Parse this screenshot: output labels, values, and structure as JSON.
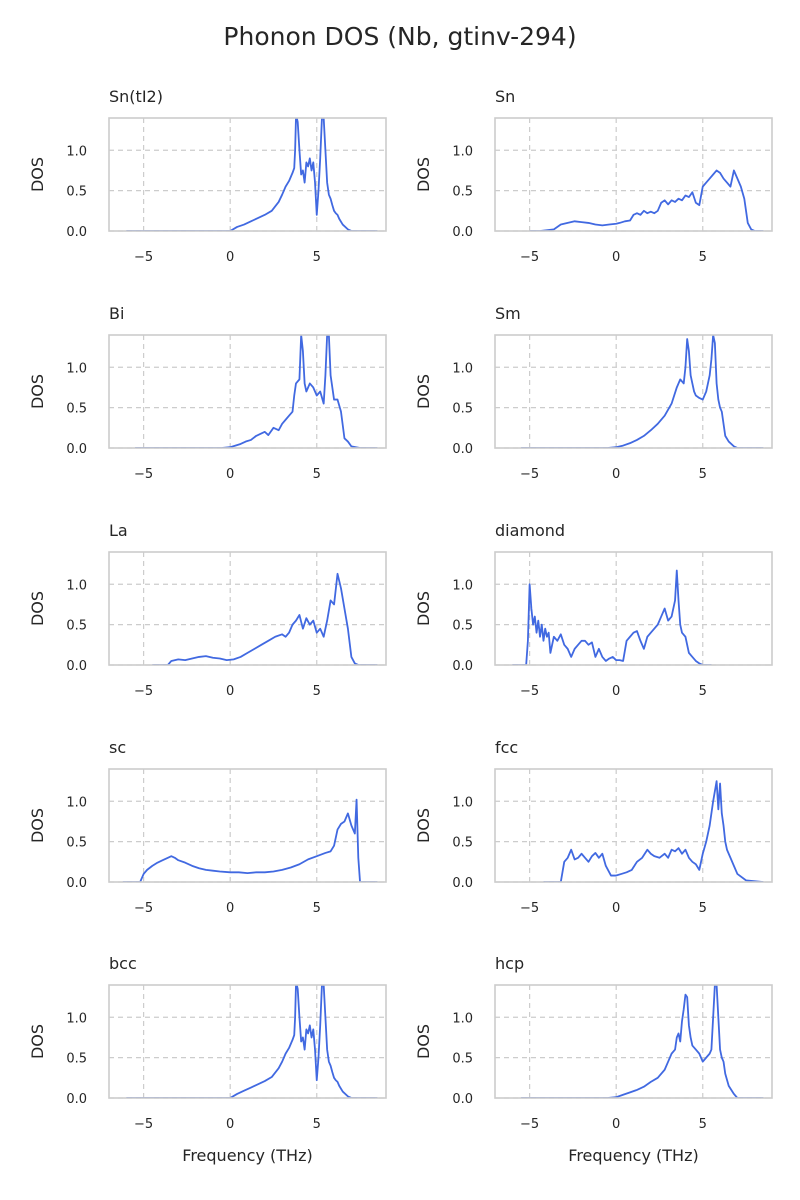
{
  "figure": {
    "title": "Phonon DOS (Nb, gtinv-294)",
    "xlabel": "Frequency (THz)",
    "ylabel": "DOS",
    "line_color": "#4169e1",
    "grid_color": "#cccccc",
    "spine_color": "#cccccc"
  },
  "chart_data": [
    {
      "type": "line",
      "title": "Sn(tI2)",
      "xlim": [
        -7,
        9
      ],
      "ylim": [
        0,
        1.4
      ],
      "xticks": [
        -5,
        0,
        5
      ],
      "yticks": [
        0.0,
        0.5,
        1.0
      ],
      "x": [
        -6.0,
        0,
        0.4,
        0.8,
        1.2,
        1.6,
        2.0,
        2.4,
        2.8,
        3.0,
        3.2,
        3.4,
        3.6,
        3.7,
        3.75,
        3.8,
        3.85,
        3.9,
        4.0,
        4.1,
        4.2,
        4.3,
        4.4,
        4.5,
        4.6,
        4.7,
        4.8,
        4.9,
        5.0,
        5.1,
        5.2,
        5.3,
        5.4,
        5.5,
        5.6,
        5.7,
        5.8,
        5.9,
        6.0,
        6.1,
        6.2,
        6.3,
        6.5,
        6.8,
        7.0,
        8.5
      ],
      "y": [
        0,
        0,
        0.05,
        0.08,
        0.12,
        0.16,
        0.2,
        0.25,
        0.36,
        0.45,
        0.55,
        0.62,
        0.72,
        0.78,
        1.0,
        1.4,
        1.4,
        1.35,
        1.0,
        0.7,
        0.75,
        0.6,
        0.85,
        0.8,
        0.9,
        0.75,
        0.85,
        0.6,
        0.2,
        0.5,
        0.9,
        1.4,
        1.4,
        1.0,
        0.6,
        0.45,
        0.4,
        0.32,
        0.25,
        0.22,
        0.2,
        0.15,
        0.08,
        0.02,
        0,
        0
      ]
    },
    {
      "type": "line",
      "title": "Sn",
      "xlim": [
        -7,
        9
      ],
      "ylim": [
        0,
        1.4
      ],
      "xticks": [
        -5,
        0,
        5
      ],
      "yticks": [
        0.0,
        0.5,
        1.0
      ],
      "x": [
        -5.0,
        -4.4,
        -3.6,
        -3.2,
        -2.8,
        -2.4,
        -2.0,
        -1.6,
        -1.2,
        -0.8,
        -0.4,
        0,
        0.2,
        0.5,
        0.8,
        1.0,
        1.2,
        1.4,
        1.6,
        1.8,
        2.0,
        2.2,
        2.4,
        2.6,
        2.8,
        3.0,
        3.2,
        3.4,
        3.6,
        3.8,
        4.0,
        4.2,
        4.4,
        4.6,
        4.8,
        5.0,
        5.2,
        5.4,
        5.6,
        5.8,
        6.0,
        6.2,
        6.4,
        6.6,
        6.8,
        7.0,
        7.2,
        7.4,
        7.6,
        7.8,
        8.0,
        8.2,
        8.5
      ],
      "y": [
        0,
        0,
        0.02,
        0.08,
        0.1,
        0.12,
        0.11,
        0.1,
        0.08,
        0.07,
        0.08,
        0.09,
        0.1,
        0.12,
        0.13,
        0.2,
        0.22,
        0.2,
        0.25,
        0.22,
        0.24,
        0.22,
        0.25,
        0.35,
        0.38,
        0.33,
        0.38,
        0.36,
        0.4,
        0.38,
        0.44,
        0.42,
        0.48,
        0.35,
        0.32,
        0.55,
        0.6,
        0.65,
        0.7,
        0.75,
        0.72,
        0.65,
        0.6,
        0.55,
        0.75,
        0.65,
        0.55,
        0.4,
        0.1,
        0.02,
        0,
        0,
        0
      ]
    },
    {
      "type": "line",
      "title": "Bi",
      "xlim": [
        -7,
        9
      ],
      "ylim": [
        0,
        1.4
      ],
      "xticks": [
        -5,
        0,
        5
      ],
      "yticks": [
        0.0,
        0.5,
        1.0
      ],
      "x": [
        -5.5,
        -1,
        -0.5,
        0,
        0.3,
        0.6,
        0.9,
        1.2,
        1.5,
        1.8,
        2.0,
        2.2,
        2.5,
        2.8,
        3.0,
        3.2,
        3.4,
        3.6,
        3.7,
        3.8,
        4.0,
        4.1,
        4.2,
        4.3,
        4.4,
        4.5,
        4.6,
        4.8,
        5.0,
        5.2,
        5.4,
        5.5,
        5.6,
        5.7,
        5.8,
        6.0,
        6.2,
        6.4,
        6.6,
        6.8,
        7.0,
        7.5,
        8.5
      ],
      "y": [
        0,
        0,
        0,
        0.01,
        0.03,
        0.05,
        0.08,
        0.1,
        0.15,
        0.18,
        0.2,
        0.16,
        0.25,
        0.22,
        0.3,
        0.35,
        0.4,
        0.45,
        0.65,
        0.8,
        0.85,
        1.4,
        1.2,
        0.8,
        0.7,
        0.75,
        0.8,
        0.75,
        0.65,
        0.7,
        0.55,
        0.9,
        1.4,
        1.4,
        0.9,
        0.6,
        0.6,
        0.45,
        0.12,
        0.08,
        0.02,
        0,
        0
      ]
    },
    {
      "type": "line",
      "title": "Sm",
      "xlim": [
        -7,
        9
      ],
      "ylim": [
        0,
        1.4
      ],
      "xticks": [
        -5,
        0,
        5
      ],
      "yticks": [
        0.0,
        0.5,
        1.0
      ],
      "x": [
        -5.5,
        -1,
        -0.5,
        0,
        0.4,
        0.8,
        1.2,
        1.6,
        2.0,
        2.4,
        2.8,
        3.2,
        3.5,
        3.7,
        3.9,
        4.0,
        4.1,
        4.2,
        4.3,
        4.4,
        4.5,
        4.6,
        4.8,
        5.0,
        5.2,
        5.4,
        5.5,
        5.6,
        5.7,
        5.8,
        5.9,
        6.0,
        6.1,
        6.2,
        6.3,
        6.5,
        6.8,
        7.0,
        8.5
      ],
      "y": [
        0,
        0,
        0,
        0.01,
        0.03,
        0.06,
        0.1,
        0.15,
        0.22,
        0.3,
        0.4,
        0.55,
        0.75,
        0.85,
        0.8,
        1.0,
        1.35,
        1.2,
        0.9,
        0.8,
        0.7,
        0.65,
        0.62,
        0.6,
        0.7,
        0.9,
        1.1,
        1.4,
        1.3,
        0.8,
        0.6,
        0.5,
        0.45,
        0.3,
        0.15,
        0.08,
        0.02,
        0,
        0
      ]
    },
    {
      "type": "line",
      "title": "La",
      "xlim": [
        -7,
        9
      ],
      "ylim": [
        0,
        1.4
      ],
      "xticks": [
        -5,
        0,
        5
      ],
      "yticks": [
        0.0,
        0.5,
        1.0
      ],
      "x": [
        -4.5,
        -3.6,
        -3.4,
        -3.0,
        -2.6,
        -2.2,
        -1.8,
        -1.4,
        -1.0,
        -0.6,
        -0.2,
        0.2,
        0.6,
        1.0,
        1.4,
        1.8,
        2.2,
        2.6,
        3.0,
        3.2,
        3.4,
        3.6,
        3.8,
        4.0,
        4.2,
        4.4,
        4.6,
        4.8,
        5.0,
        5.2,
        5.4,
        5.6,
        5.8,
        6.0,
        6.2,
        6.4,
        6.6,
        6.8,
        7.0,
        7.2,
        7.4,
        7.6,
        8.0,
        8.5
      ],
      "y": [
        0,
        0,
        0.05,
        0.07,
        0.06,
        0.08,
        0.1,
        0.11,
        0.09,
        0.08,
        0.06,
        0.07,
        0.1,
        0.15,
        0.2,
        0.25,
        0.3,
        0.35,
        0.38,
        0.35,
        0.4,
        0.5,
        0.55,
        0.62,
        0.45,
        0.58,
        0.5,
        0.55,
        0.4,
        0.45,
        0.35,
        0.55,
        0.8,
        0.75,
        1.13,
        0.95,
        0.7,
        0.45,
        0.1,
        0.02,
        0,
        0,
        0,
        0
      ]
    },
    {
      "type": "line",
      "title": "diamond",
      "xlim": [
        -7,
        9
      ],
      "ylim": [
        0,
        1.4
      ],
      "xticks": [
        -5,
        0,
        5
      ],
      "yticks": [
        0.0,
        0.5,
        1.0
      ],
      "x": [
        -6.0,
        -5.2,
        -5.1,
        -5.0,
        -4.9,
        -4.8,
        -4.7,
        -4.6,
        -4.5,
        -4.4,
        -4.3,
        -4.2,
        -4.1,
        -4.0,
        -3.9,
        -3.8,
        -3.6,
        -3.4,
        -3.2,
        -3.0,
        -2.8,
        -2.6,
        -2.4,
        -2.2,
        -2.0,
        -1.8,
        -1.6,
        -1.4,
        -1.2,
        -1.0,
        -0.8,
        -0.6,
        -0.4,
        -0.2,
        0,
        0.2,
        0.4,
        0.6,
        0.8,
        1.0,
        1.2,
        1.4,
        1.6,
        1.8,
        2.0,
        2.2,
        2.4,
        2.6,
        2.8,
        3.0,
        3.2,
        3.4,
        3.5,
        3.6,
        3.7,
        3.8,
        4.0,
        4.2,
        4.4,
        4.6,
        4.8,
        5.0,
        5.5
      ],
      "y": [
        0,
        0,
        0.3,
        1.0,
        0.7,
        0.5,
        0.6,
        0.4,
        0.55,
        0.35,
        0.5,
        0.3,
        0.45,
        0.35,
        0.4,
        0.15,
        0.35,
        0.3,
        0.38,
        0.25,
        0.2,
        0.1,
        0.2,
        0.25,
        0.3,
        0.3,
        0.25,
        0.28,
        0.1,
        0.2,
        0.1,
        0.05,
        0.08,
        0.1,
        0.06,
        0.06,
        0.05,
        0.3,
        0.35,
        0.4,
        0.42,
        0.3,
        0.2,
        0.35,
        0.4,
        0.45,
        0.5,
        0.6,
        0.7,
        0.55,
        0.6,
        0.8,
        1.17,
        0.8,
        0.5,
        0.4,
        0.35,
        0.15,
        0.1,
        0.05,
        0.02,
        0,
        0
      ]
    },
    {
      "type": "line",
      "title": "sc",
      "xlim": [
        -7,
        9
      ],
      "ylim": [
        0,
        1.4
      ],
      "xticks": [
        -5,
        0,
        5
      ],
      "yticks": [
        0.0,
        0.5,
        1.0
      ],
      "x": [
        -6.2,
        -5.2,
        -5.0,
        -4.8,
        -4.5,
        -4.2,
        -3.9,
        -3.6,
        -3.4,
        -3.2,
        -3.0,
        -2.6,
        -2.2,
        -1.8,
        -1.4,
        -1.0,
        -0.6,
        0,
        0.5,
        1.0,
        1.5,
        2.0,
        2.5,
        3.0,
        3.5,
        4.0,
        4.5,
        5.0,
        5.5,
        5.8,
        6.0,
        6.2,
        6.4,
        6.6,
        6.8,
        7.0,
        7.2,
        7.3,
        7.4,
        7.5,
        8.5
      ],
      "y": [
        0,
        0,
        0.1,
        0.15,
        0.2,
        0.24,
        0.27,
        0.3,
        0.32,
        0.3,
        0.27,
        0.24,
        0.2,
        0.17,
        0.15,
        0.14,
        0.13,
        0.12,
        0.12,
        0.11,
        0.12,
        0.12,
        0.13,
        0.15,
        0.18,
        0.22,
        0.28,
        0.32,
        0.36,
        0.38,
        0.45,
        0.65,
        0.72,
        0.75,
        0.85,
        0.7,
        0.6,
        1.02,
        0.3,
        0,
        0
      ]
    },
    {
      "type": "line",
      "title": "fcc",
      "xlim": [
        -7,
        9
      ],
      "ylim": [
        0,
        1.4
      ],
      "xticks": [
        -5,
        0,
        5
      ],
      "yticks": [
        0.0,
        0.5,
        1.0
      ],
      "x": [
        -4.2,
        -3.2,
        -3.0,
        -2.8,
        -2.6,
        -2.4,
        -2.2,
        -2.0,
        -1.8,
        -1.6,
        -1.4,
        -1.2,
        -1.0,
        -0.8,
        -0.6,
        -0.3,
        0,
        0.3,
        0.6,
        0.9,
        1.2,
        1.5,
        1.8,
        2.0,
        2.2,
        2.5,
        2.8,
        3.0,
        3.2,
        3.4,
        3.6,
        3.8,
        4.0,
        4.2,
        4.4,
        4.6,
        4.8,
        5.0,
        5.2,
        5.4,
        5.6,
        5.8,
        5.9,
        6.0,
        6.1,
        6.2,
        6.3,
        6.4,
        6.6,
        6.8,
        7.0,
        7.5,
        8.5
      ],
      "y": [
        0,
        0,
        0.25,
        0.3,
        0.4,
        0.28,
        0.3,
        0.35,
        0.3,
        0.25,
        0.32,
        0.36,
        0.3,
        0.35,
        0.2,
        0.08,
        0.08,
        0.1,
        0.12,
        0.15,
        0.25,
        0.3,
        0.4,
        0.35,
        0.32,
        0.3,
        0.35,
        0.3,
        0.4,
        0.38,
        0.42,
        0.35,
        0.4,
        0.3,
        0.25,
        0.22,
        0.15,
        0.35,
        0.5,
        0.7,
        1.0,
        1.25,
        0.9,
        1.22,
        0.85,
        0.7,
        0.5,
        0.4,
        0.3,
        0.2,
        0.1,
        0.02,
        0
      ]
    },
    {
      "type": "line",
      "title": "bcc",
      "xlim": [
        -7,
        9
      ],
      "ylim": [
        0,
        1.4
      ],
      "xticks": [
        -5,
        0,
        5
      ],
      "yticks": [
        0.0,
        0.5,
        1.0
      ],
      "x": [
        -6.0,
        0,
        0.4,
        0.8,
        1.2,
        1.6,
        2.0,
        2.4,
        2.8,
        3.0,
        3.2,
        3.4,
        3.6,
        3.7,
        3.75,
        3.8,
        3.85,
        3.9,
        4.0,
        4.1,
        4.2,
        4.3,
        4.4,
        4.5,
        4.6,
        4.7,
        4.8,
        4.9,
        5.0,
        5.1,
        5.2,
        5.3,
        5.4,
        5.5,
        5.6,
        5.7,
        5.8,
        5.9,
        6.0,
        6.1,
        6.2,
        6.3,
        6.5,
        6.8,
        7.0,
        8.5
      ],
      "y": [
        0,
        0,
        0.05,
        0.09,
        0.13,
        0.17,
        0.21,
        0.26,
        0.37,
        0.45,
        0.55,
        0.62,
        0.72,
        0.78,
        1.0,
        1.4,
        1.4,
        1.35,
        1.0,
        0.7,
        0.75,
        0.6,
        0.85,
        0.8,
        0.9,
        0.75,
        0.85,
        0.6,
        0.22,
        0.5,
        0.9,
        1.4,
        1.4,
        1.0,
        0.6,
        0.45,
        0.4,
        0.32,
        0.25,
        0.22,
        0.2,
        0.15,
        0.08,
        0.02,
        0,
        0
      ]
    },
    {
      "type": "line",
      "title": "hcp",
      "xlim": [
        -7,
        9
      ],
      "ylim": [
        0,
        1.4
      ],
      "xticks": [
        -5,
        0,
        5
      ],
      "yticks": [
        0.0,
        0.5,
        1.0
      ],
      "x": [
        -5.5,
        -1,
        -0.5,
        0,
        0.4,
        0.8,
        1.2,
        1.6,
        2.0,
        2.4,
        2.8,
        3.0,
        3.2,
        3.4,
        3.5,
        3.6,
        3.7,
        3.8,
        3.9,
        4.0,
        4.1,
        4.2,
        4.3,
        4.4,
        4.6,
        4.8,
        5.0,
        5.2,
        5.4,
        5.5,
        5.6,
        5.7,
        5.8,
        5.9,
        6.0,
        6.1,
        6.2,
        6.3,
        6.5,
        6.8,
        7.0,
        8.5
      ],
      "y": [
        0,
        0,
        0,
        0.01,
        0.04,
        0.07,
        0.1,
        0.14,
        0.2,
        0.25,
        0.35,
        0.45,
        0.55,
        0.6,
        0.75,
        0.8,
        0.7,
        0.95,
        1.1,
        1.28,
        1.25,
        0.9,
        0.75,
        0.65,
        0.6,
        0.55,
        0.45,
        0.5,
        0.55,
        0.6,
        1.0,
        1.4,
        1.4,
        1.0,
        0.6,
        0.5,
        0.45,
        0.3,
        0.15,
        0.05,
        0,
        0
      ]
    }
  ]
}
